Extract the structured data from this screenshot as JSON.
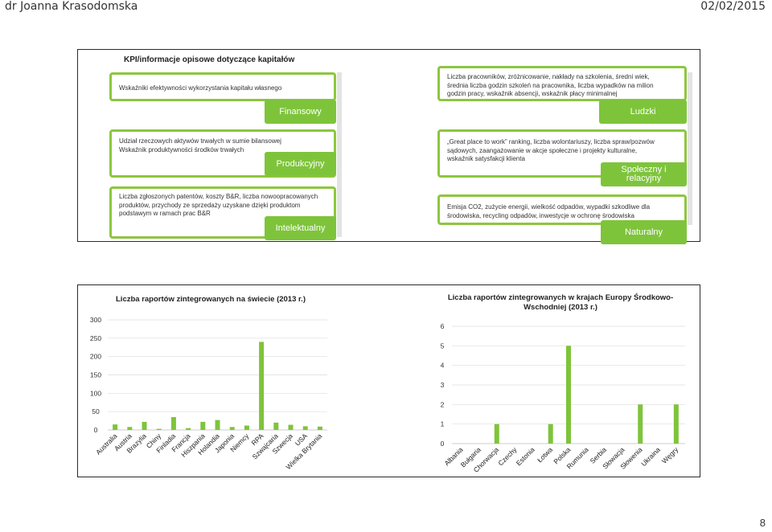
{
  "header": {
    "author": "dr Joanna Krasodomska",
    "date": "02/02/2015"
  },
  "page_number": "8",
  "kpi": {
    "title": "KPI/informacje opisowe dotyczące kapitałów",
    "categories": [
      {
        "desc": [
          "Wskaźniki efektywności wykorzystania kapitału własnego"
        ],
        "label": "Finansowy"
      },
      {
        "desc": [
          "Liczba pracowników, zróżnicowanie, nakłady na szkolenia, średni wiek,",
          "średnia liczba godzin szkoleń na pracownika, liczba wypadków na milion",
          "godzin pracy, wskaźnik absencji, wskaźnik płacy minimalnej"
        ],
        "label": "Ludzki"
      },
      {
        "desc": [
          "Udział rzeczowych aktywów trwałych w sumie bilansowej",
          "Wskaźnik produktywności środków trwałych"
        ],
        "label": "Produkcyjny"
      },
      {
        "desc": [
          "„Great place to work” ranking, liczba wolontariuszy, liczba spraw/pozwów",
          "sądowych, zaangażowanie w akcje społeczne i projekty kulturalne,",
          "wskaźnik satysfakcji klienta"
        ],
        "label": [
          "Społeczny i",
          "relacyjny"
        ]
      },
      {
        "desc": [
          "Liczba zgłoszonych patentów, koszty B&R, liczba nowoopracowanych",
          "produktów, przychody ze sprzedaży uzyskane dzięki produktom",
          "podstawym w ramach prac B&R"
        ],
        "label": "Intelektualny"
      },
      {
        "desc": [
          "Emisja CO2, zużycie energii, wielkość odpadów, wypadki szkodliwe dla",
          "środowiska, recycling odpadów, inwestycje w ochronę środowiska"
        ],
        "label": "Naturalny"
      }
    ]
  },
  "chart_data": [
    {
      "type": "bar",
      "title": "Liczba raportów zintegrowanych na świecie (2013 r.)",
      "categories": [
        "Australia",
        "Austria",
        "Brazylia",
        "Chiny",
        "Finladia",
        "Francja",
        "Hiszpania",
        "Holandia",
        "Japonia",
        "Niemcy",
        "RPA",
        "Szwajcaria",
        "Szwecja",
        "USA",
        "Wielka Brytania"
      ],
      "values": [
        15,
        8,
        22,
        3,
        35,
        5,
        22,
        27,
        8,
        12,
        240,
        20,
        14,
        10,
        9
      ],
      "yticks": [
        "0",
        "50",
        "100",
        "150",
        "200",
        "250",
        "300"
      ],
      "ylim": [
        0,
        300
      ],
      "color": "#7ec43b"
    },
    {
      "type": "bar",
      "title": [
        "Liczba raportów zintegrowanych w krajach Europy Środkowo-",
        "Wschodniej (2013 r.)"
      ],
      "categories": [
        "Albania",
        "Bułgaria",
        "Chorwacja",
        "Czechy",
        "Estonia",
        "Łotwa",
        "Polska",
        "Rumunia",
        "Serbia",
        "Słowacja",
        "Słowenia",
        "Ukraina",
        "Węgry"
      ],
      "values": [
        0,
        0,
        1,
        0,
        0,
        1,
        5,
        0,
        0,
        0,
        2,
        0,
        2
      ],
      "yticks": [
        "0",
        "1",
        "2",
        "3",
        "4",
        "5",
        "6"
      ],
      "ylim": [
        0,
        6
      ],
      "color": "#7ec43b"
    }
  ]
}
